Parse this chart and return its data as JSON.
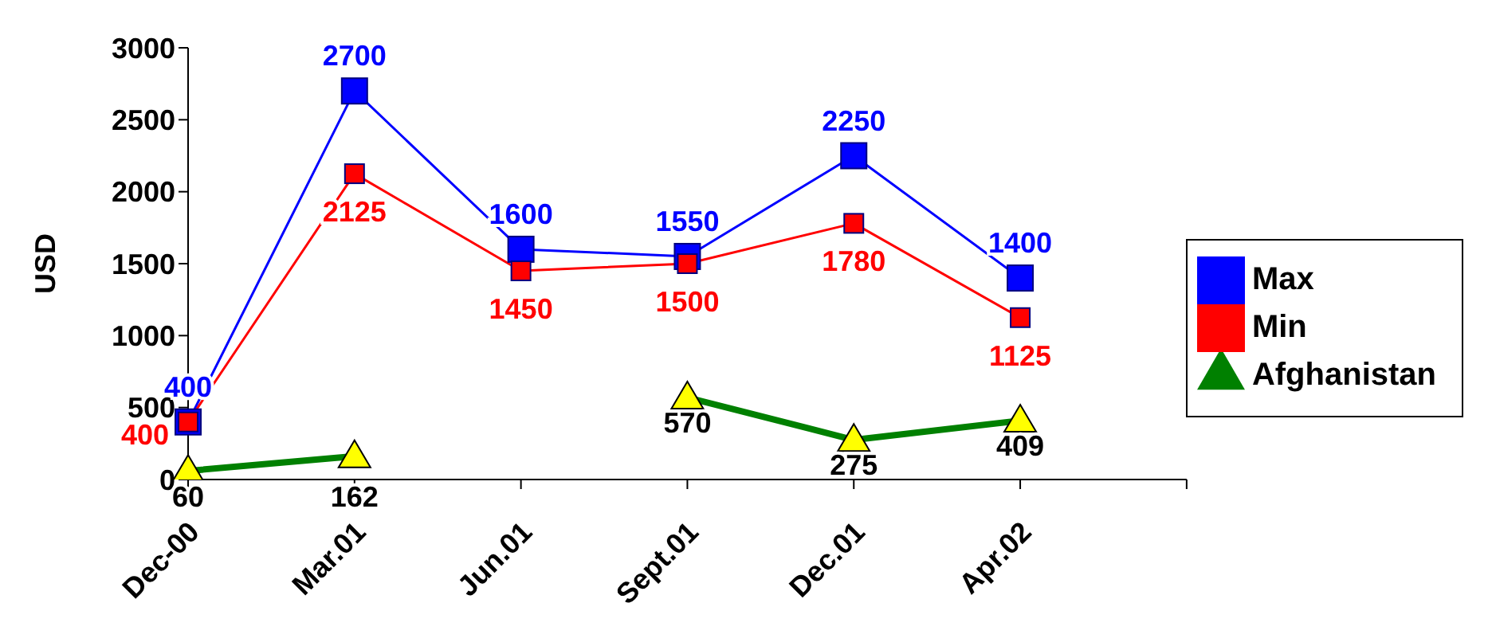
{
  "chart_data": {
    "type": "line",
    "ylabel": "USD",
    "categories": [
      "Dec-00",
      "Mar.01",
      "Jun.01",
      "Sept.01",
      "Dec.01",
      "Apr.02",
      null
    ],
    "series": [
      {
        "name": "Max",
        "color": "#0000ff",
        "marker": "square",
        "values": [
          400,
          2700,
          1600,
          1550,
          2250,
          1400,
          null
        ]
      },
      {
        "name": "Min",
        "color": "#ff0000",
        "marker": "square",
        "values": [
          400,
          2125,
          1450,
          1500,
          1780,
          1125,
          null
        ]
      },
      {
        "name": "Afghanistan",
        "color": "#008000",
        "marker": "triangle",
        "values": [
          60,
          162,
          null,
          570,
          275,
          409,
          null
        ]
      }
    ],
    "ylim": [
      0,
      3000
    ],
    "yticks": [
      0,
      500,
      1000,
      1500,
      2000,
      2500,
      3000
    ],
    "grid": false,
    "legend": "right",
    "data_labels": true
  }
}
